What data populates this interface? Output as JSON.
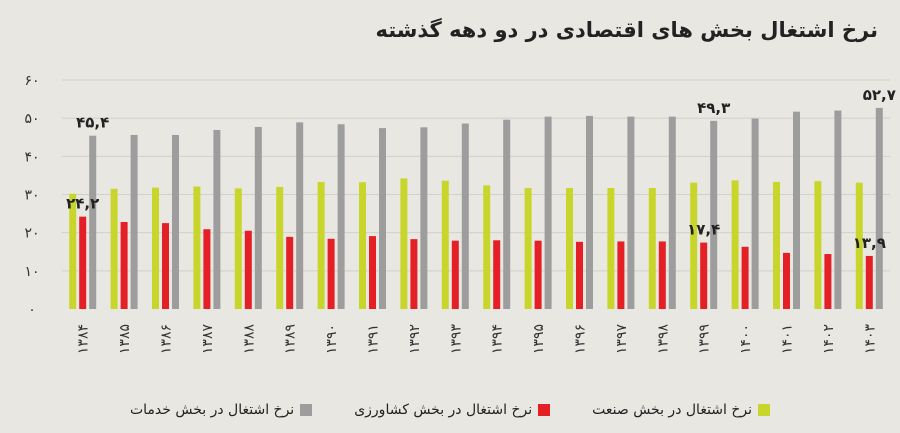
{
  "chart_data": {
    "type": "bar",
    "title": "نرخ اشتغال بخش های اقتصادی در دو دهه گذشته",
    "xlabel": "",
    "ylabel": "",
    "ylim": [
      0,
      60
    ],
    "yticks": [
      "۰",
      "۱۰",
      "۲۰",
      "۳۰",
      "۴۰",
      "۵۰",
      "۶۰"
    ],
    "grid": true,
    "legend_position": "bottom",
    "categories": [
      "۱۳۸۴",
      "۱۳۸۵",
      "۱۳۸۶",
      "۱۳۸۷",
      "۱۳۸۸",
      "۱۳۸۹",
      "۱۳۹۰",
      "۱۳۹۱",
      "۱۳۹۲",
      "۱۳۹۳",
      "۱۳۹۴",
      "۱۳۹۵",
      "۱۳۹۶",
      "۱۳۹۷",
      "۱۳۹۸",
      "۱۳۹۹",
      "۱۴۰۰",
      "۱۴۰۱",
      "۱۴۰۲",
      "۱۴۰۳"
    ],
    "series": [
      {
        "name": "نرخ اشتغال در بخش صنعت",
        "color": "#c8d62b",
        "values": [
          30.2,
          31.5,
          31.8,
          32.1,
          31.6,
          32.0,
          33.3,
          33.2,
          34.2,
          33.6,
          32.4,
          31.7,
          31.7,
          31.7,
          31.7,
          33.1,
          33.7,
          33.3,
          33.5,
          33.1
        ]
      },
      {
        "name": "نرخ اشتغال در بخش کشاورزی",
        "color": "#e41f25",
        "values": [
          24.2,
          22.8,
          22.5,
          20.9,
          20.5,
          18.9,
          18.4,
          19.1,
          18.3,
          17.9,
          18.0,
          17.9,
          17.6,
          17.7,
          17.7,
          17.4,
          16.3,
          14.7,
          14.4,
          13.9
        ]
      },
      {
        "name": "نرخ اشتغال در بخش خدمات",
        "color": "#9d9d9d",
        "values": [
          45.4,
          45.6,
          45.6,
          46.9,
          47.7,
          48.9,
          48.4,
          47.4,
          47.6,
          48.6,
          49.6,
          50.4,
          50.6,
          50.4,
          50.4,
          49.3,
          49.9,
          51.7,
          52.0,
          52.7
        ]
      }
    ],
    "annotations": [
      {
        "series": 2,
        "index": 0,
        "text": "۴۵,۴"
      },
      {
        "series": 1,
        "index": 0,
        "text": "۲۴,۲"
      },
      {
        "series": 2,
        "index": 15,
        "text": "۴۹,۳"
      },
      {
        "series": 1,
        "index": 15,
        "text": "۱۷,۴"
      },
      {
        "series": 2,
        "index": 19,
        "text": "۵۲,۷"
      },
      {
        "series": 1,
        "index": 19,
        "text": "۱۳,۹"
      }
    ]
  }
}
